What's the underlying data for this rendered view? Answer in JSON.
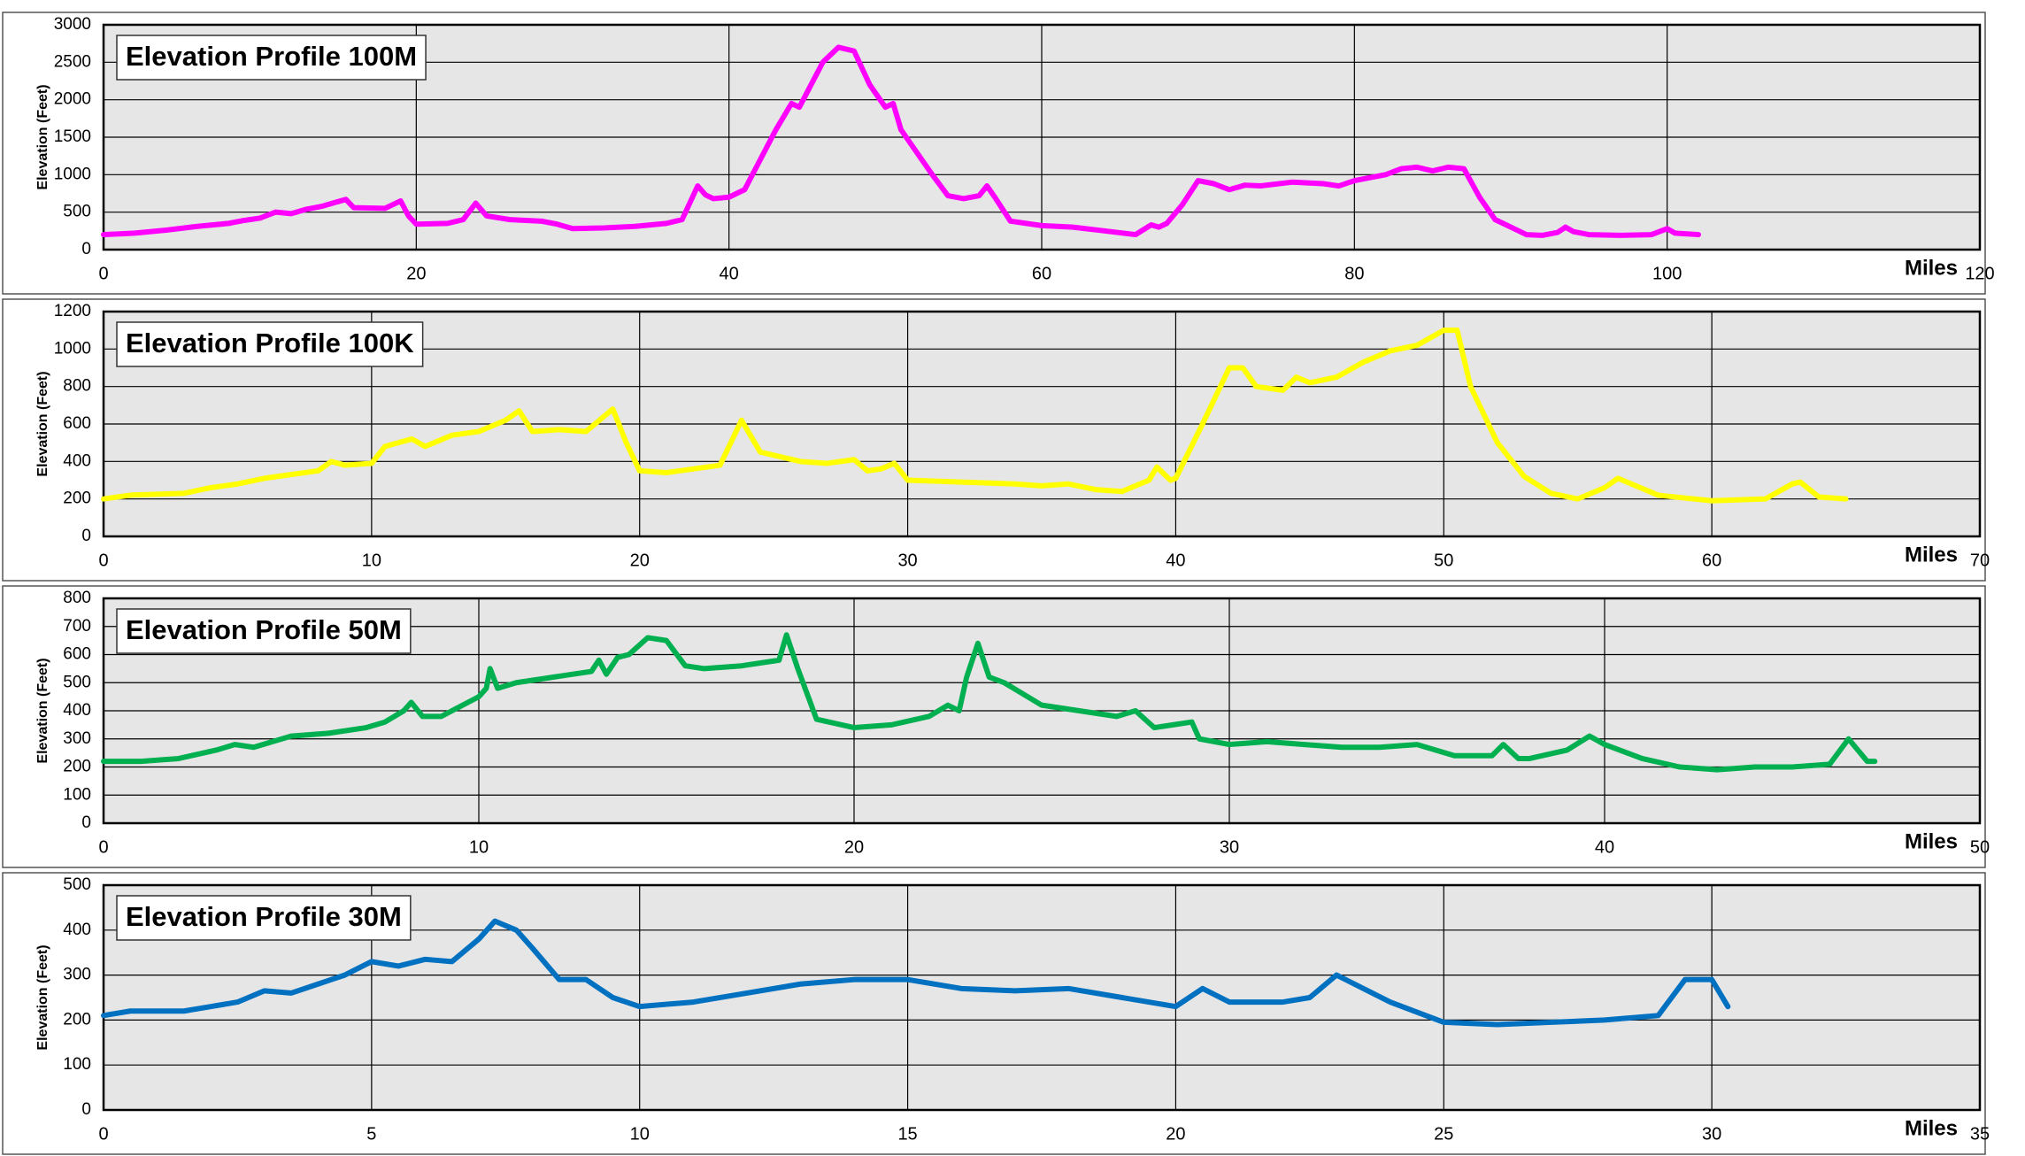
{
  "chart_data": [
    {
      "type": "line",
      "title": "Elevation Profile 100M",
      "y_label": "Elevation (Feet)",
      "x_label": "Miles",
      "xlim": [
        0,
        120
      ],
      "xticks": [
        0,
        20,
        40,
        60,
        80,
        100,
        120
      ],
      "ylim": [
        0,
        3000
      ],
      "yticks": [
        0,
        500,
        1000,
        1500,
        2000,
        2500,
        3000
      ],
      "grid": true,
      "x": [
        0,
        2,
        4,
        6,
        8,
        9,
        10,
        11,
        12,
        13,
        14,
        15,
        15.5,
        16,
        18,
        19,
        19.5,
        20,
        22,
        23,
        23.8,
        24.5,
        26,
        28,
        29,
        30,
        32,
        34,
        36,
        37,
        38,
        38.5,
        39,
        40,
        41,
        42,
        43,
        44,
        44.5,
        45,
        46,
        47,
        48,
        49,
        50,
        50.5,
        51,
        52,
        53,
        54,
        55,
        56,
        56.5,
        57,
        58,
        60,
        62,
        64,
        66,
        67,
        67.5,
        68,
        69,
        70,
        71,
        72,
        73,
        74,
        76,
        78,
        79,
        80,
        82,
        83,
        84,
        85,
        86,
        87,
        88,
        89,
        90,
        91,
        92,
        93,
        93.5,
        94,
        95,
        97,
        99,
        100,
        100.5,
        102
      ],
      "series": [
        {
          "name": "100M",
          "color": "#ff00ff",
          "values": [
            200,
            220,
            260,
            310,
            350,
            390,
            420,
            500,
            480,
            540,
            580,
            640,
            670,
            560,
            550,
            650,
            450,
            340,
            350,
            400,
            620,
            450,
            400,
            380,
            340,
            280,
            290,
            310,
            350,
            400,
            850,
            730,
            680,
            700,
            800,
            1200,
            1600,
            1950,
            1900,
            2100,
            2500,
            2700,
            2650,
            2200,
            1900,
            1950,
            1600,
            1300,
            1000,
            720,
            680,
            720,
            850,
            700,
            380,
            320,
            300,
            250,
            200,
            330,
            300,
            350,
            600,
            920,
            880,
            800,
            860,
            850,
            900,
            880,
            850,
            920,
            1000,
            1080,
            1100,
            1050,
            1100,
            1080,
            700,
            400,
            300,
            200,
            190,
            230,
            300,
            240,
            200,
            190,
            200,
            280,
            220,
            200
          ]
        }
      ]
    },
    {
      "type": "line",
      "title": "Elevation Profile 100K",
      "y_label": "Elevation (Feet)",
      "x_label": "Miles",
      "xlim": [
        0,
        70
      ],
      "xticks": [
        0,
        10,
        20,
        30,
        40,
        50,
        60,
        70
      ],
      "ylim": [
        0,
        1200
      ],
      "yticks": [
        0,
        200,
        400,
        600,
        800,
        1000,
        1200
      ],
      "grid": true,
      "x": [
        0,
        1,
        3,
        4,
        5,
        6,
        7,
        8,
        8.5,
        9,
        10,
        10.5,
        11,
        11.5,
        12,
        13,
        14,
        15,
        15.5,
        16,
        17,
        18,
        19,
        19.5,
        20,
        21,
        22,
        23,
        23.8,
        24.5,
        26,
        27,
        28,
        28.5,
        29,
        29.5,
        30,
        32,
        34,
        35,
        36,
        37,
        38,
        39,
        39.3,
        39.8,
        40,
        41,
        42,
        42.5,
        43,
        44,
        44.5,
        45,
        46,
        47,
        48,
        49,
        50,
        50.5,
        51,
        52,
        53,
        54,
        55,
        56,
        56.5,
        57,
        58,
        60,
        62,
        63,
        63.3,
        64,
        65
      ],
      "series": [
        {
          "name": "100K",
          "color": "#ffff00",
          "values": [
            200,
            220,
            230,
            260,
            280,
            310,
            330,
            350,
            400,
            380,
            390,
            480,
            500,
            520,
            480,
            540,
            560,
            620,
            670,
            560,
            570,
            560,
            680,
            500,
            350,
            340,
            360,
            380,
            620,
            450,
            400,
            390,
            410,
            350,
            360,
            390,
            300,
            290,
            280,
            270,
            280,
            250,
            240,
            300,
            370,
            300,
            310,
            600,
            900,
            900,
            800,
            780,
            850,
            820,
            850,
            930,
            990,
            1020,
            1100,
            1100,
            800,
            500,
            320,
            230,
            200,
            260,
            310,
            280,
            220,
            190,
            200,
            280,
            290,
            210,
            200
          ]
        }
      ]
    },
    {
      "type": "line",
      "title": "Elevation Profile 50M",
      "y_label": "Elevation (Feet)",
      "x_label": "Miles",
      "xlim": [
        0,
        50
      ],
      "xticks": [
        0,
        10,
        20,
        30,
        40,
        50
      ],
      "ylim": [
        0,
        800
      ],
      "yticks": [
        0,
        100,
        200,
        300,
        400,
        500,
        600,
        700,
        800
      ],
      "grid": true,
      "x": [
        0,
        1,
        2,
        3,
        3.5,
        4,
        5,
        6,
        7,
        7.5,
        8,
        8.2,
        8.5,
        9,
        10,
        10.2,
        10.3,
        10.5,
        11,
        12,
        13,
        13.2,
        13.4,
        13.7,
        14,
        14.5,
        15,
        15.5,
        16,
        17,
        18,
        18.2,
        18.5,
        19,
        20,
        21,
        22,
        22.5,
        22.8,
        23,
        23.3,
        23.6,
        24,
        25,
        26,
        27,
        27.5,
        28,
        28.5,
        29,
        29.2,
        30,
        31,
        32,
        33,
        34,
        35,
        36,
        37,
        37.3,
        37.7,
        38,
        39,
        39.6,
        40,
        41,
        42,
        43,
        44,
        45,
        46,
        46.5,
        47,
        47.2
      ],
      "series": [
        {
          "name": "50M",
          "color": "#00b050",
          "values": [
            220,
            220,
            230,
            260,
            280,
            270,
            310,
            320,
            340,
            360,
            400,
            430,
            380,
            380,
            450,
            480,
            550,
            480,
            500,
            520,
            540,
            580,
            530,
            590,
            600,
            660,
            650,
            560,
            550,
            560,
            580,
            670,
            550,
            370,
            340,
            350,
            380,
            420,
            400,
            520,
            640,
            520,
            500,
            420,
            400,
            380,
            400,
            340,
            350,
            360,
            300,
            280,
            290,
            280,
            270,
            270,
            280,
            240,
            240,
            280,
            230,
            230,
            260,
            310,
            280,
            230,
            200,
            190,
            200,
            200,
            210,
            300,
            220,
            220
          ]
        }
      ]
    },
    {
      "type": "line",
      "title": "Elevation Profile 30M",
      "y_label": "Elevation (Feet)",
      "x_label": "Miles",
      "xlim": [
        0,
        35
      ],
      "xticks": [
        0,
        5,
        10,
        15,
        20,
        25,
        30,
        35
      ],
      "ylim": [
        0,
        500
      ],
      "yticks": [
        0,
        100,
        200,
        300,
        400,
        500
      ],
      "grid": true,
      "x": [
        0,
        0.5,
        1.5,
        2,
        2.5,
        3,
        3.5,
        4,
        4.5,
        5,
        5.5,
        6,
        6.5,
        7,
        7.3,
        7.7,
        8,
        8.5,
        9,
        9.5,
        10,
        11,
        12,
        13,
        14,
        15,
        16,
        17,
        18,
        19,
        20,
        20.5,
        21,
        22,
        22.5,
        23,
        23.5,
        24,
        25,
        26,
        27,
        28,
        29,
        29.5,
        30,
        30.3
      ],
      "series": [
        {
          "name": "30M",
          "color": "#0070c0",
          "values": [
            210,
            220,
            220,
            230,
            240,
            265,
            260,
            280,
            300,
            330,
            320,
            335,
            330,
            380,
            420,
            400,
            360,
            290,
            290,
            250,
            230,
            240,
            260,
            280,
            290,
            290,
            270,
            265,
            270,
            250,
            230,
            270,
            240,
            240,
            250,
            300,
            270,
            240,
            195,
            190,
            195,
            200,
            210,
            290,
            290,
            230
          ]
        }
      ]
    }
  ]
}
